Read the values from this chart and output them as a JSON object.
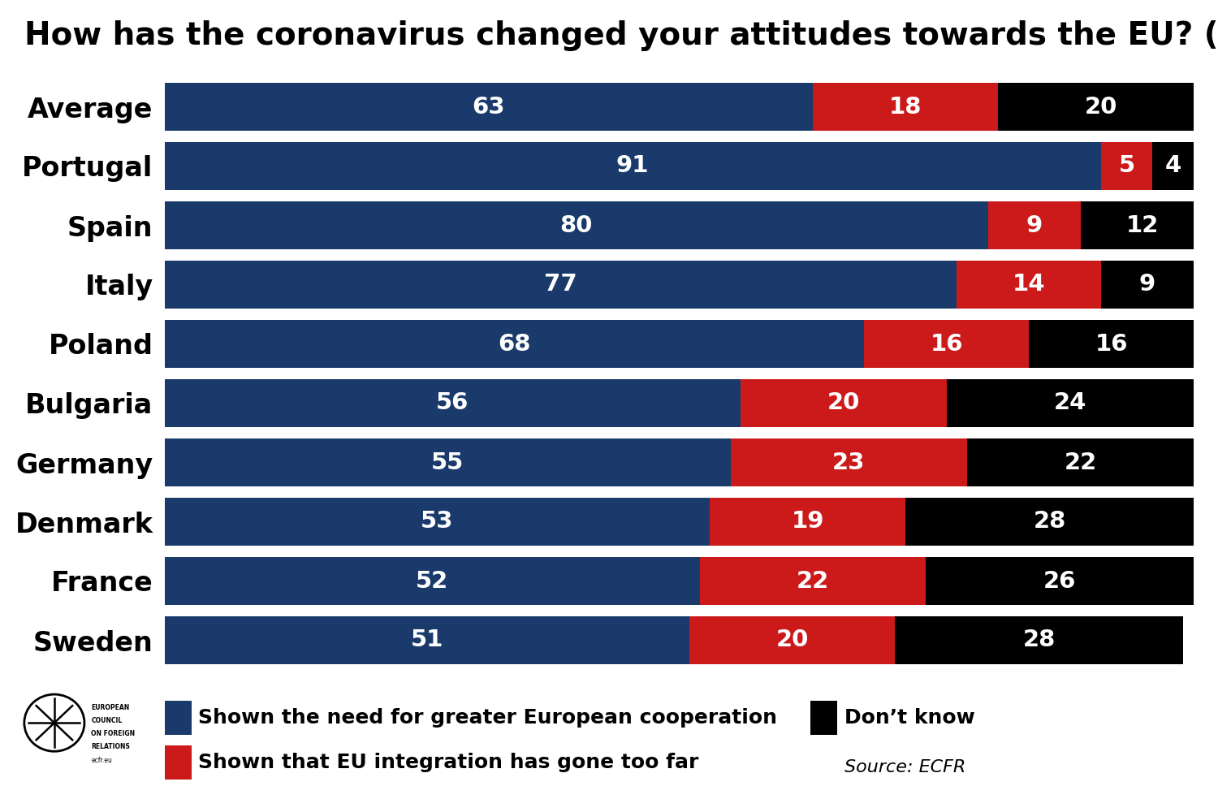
{
  "title": "How has the coronavirus changed your attitudes towards the EU? (%)",
  "categories": [
    "Average",
    "Portugal",
    "Spain",
    "Italy",
    "Poland",
    "Bulgaria",
    "Germany",
    "Denmark",
    "France",
    "Sweden"
  ],
  "blue_values": [
    63,
    91,
    80,
    77,
    68,
    56,
    55,
    53,
    52,
    51
  ],
  "red_values": [
    18,
    5,
    9,
    14,
    16,
    20,
    23,
    19,
    22,
    20
  ],
  "black_values": [
    20,
    4,
    12,
    9,
    16,
    24,
    22,
    28,
    26,
    28
  ],
  "blue_color": "#1a3a6b",
  "red_color": "#cc1a1a",
  "black_color": "#000000",
  "white_text": "#ffffff",
  "bg_color": "#ffffff",
  "legend_blue": "Shown the need for greater European cooperation",
  "legend_red": "Shown that EU integration has gone too far",
  "legend_black": "Don’t know",
  "source_text": "Source: ECFR",
  "title_fontsize": 28,
  "label_fontsize": 24,
  "value_fontsize": 21,
  "legend_fontsize": 18
}
